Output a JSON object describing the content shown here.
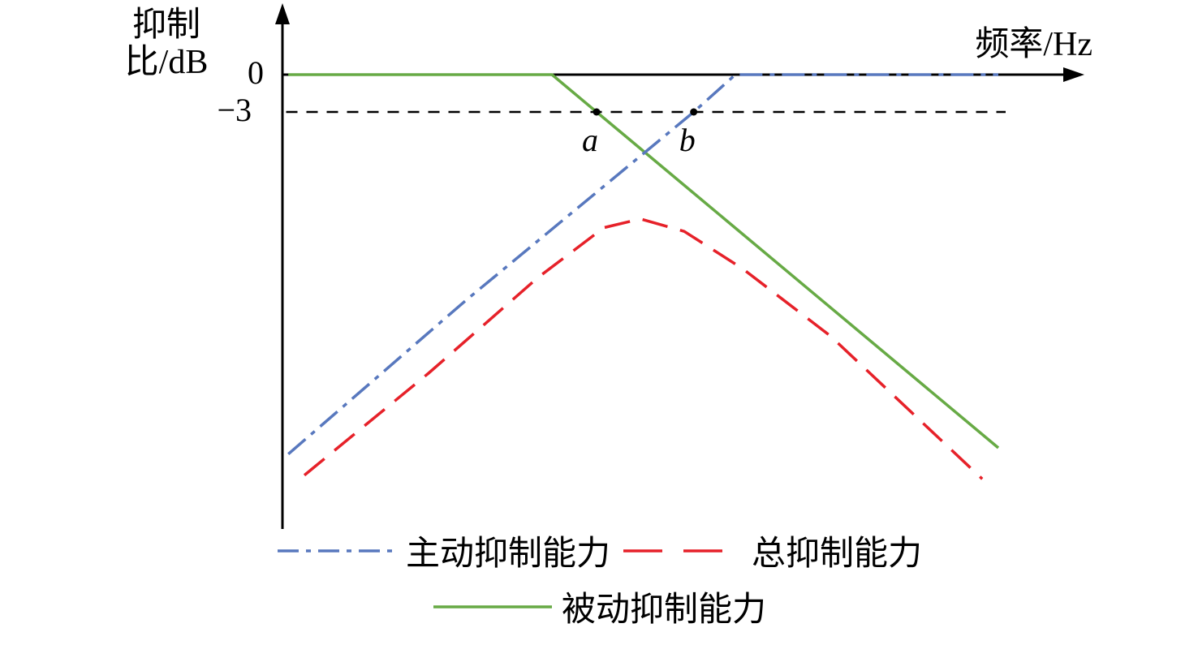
{
  "colors": {
    "blue": "#5878be",
    "red": "#e62129",
    "green": "#67aa45",
    "axis": "#000000"
  },
  "chart_data": {
    "type": "line",
    "title": "",
    "xlabel": "频率/Hz",
    "ylabel": "抑制比/dB",
    "ylabel_lines": [
      "抑制",
      "比/dB"
    ],
    "x_unit": "fraction of frequency axis (schematic, 0-100)",
    "y_unit": "dB",
    "ylim": [
      -34,
      0
    ],
    "grid": false,
    "yticks": [
      {
        "value": 0,
        "label": "0"
      },
      {
        "value": -3,
        "label": "−3"
      }
    ],
    "reference_line": {
      "y": -3,
      "style": "dashed",
      "x_start": 0.5,
      "x_end": 99
    },
    "series": [
      {
        "name": "主动抑制能力",
        "color": "#5878be",
        "style": "dashdot",
        "points": [
          [
            0.8,
            -30.5
          ],
          [
            25,
            -18.2
          ],
          [
            56.3,
            -3
          ],
          [
            62,
            0
          ],
          [
            98,
            0
          ]
        ]
      },
      {
        "name": "总抑制能力",
        "color": "#e62129",
        "style": "dashed",
        "points": [
          [
            3,
            -32.2
          ],
          [
            20,
            -24
          ],
          [
            35,
            -16.3
          ],
          [
            44,
            -12.3
          ],
          [
            49,
            -11.6
          ],
          [
            55,
            -12.6
          ],
          [
            63,
            -15.6
          ],
          [
            75,
            -21
          ],
          [
            95.8,
            -32.5
          ]
        ]
      },
      {
        "name": "被动抑制能力",
        "color": "#67aa45",
        "style": "solid",
        "points": [
          [
            0.8,
            0
          ],
          [
            36.9,
            0
          ],
          [
            43,
            -3
          ],
          [
            98,
            -30
          ]
        ]
      }
    ],
    "annotations": [
      {
        "label": "a",
        "x": 43,
        "y": -3,
        "marker": "dot"
      },
      {
        "label": "b",
        "x": 56.3,
        "y": -3,
        "marker": "dot"
      }
    ],
    "legend": {
      "position": "bottom",
      "rows": [
        [
          "主动抑制能力",
          "总抑制能力"
        ],
        [
          "被动抑制能力"
        ]
      ]
    }
  }
}
